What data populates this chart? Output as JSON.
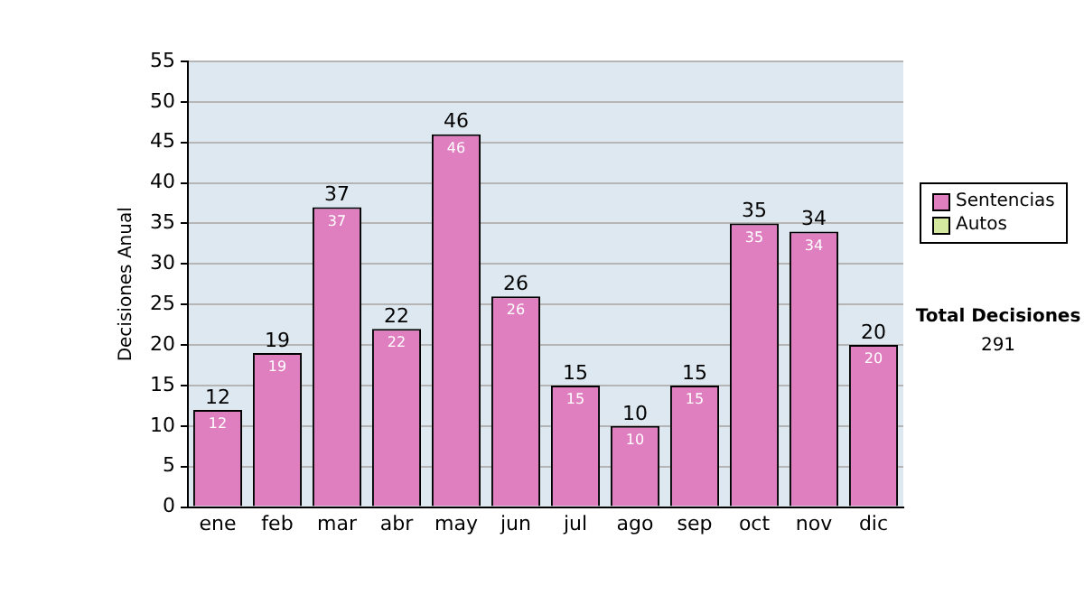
{
  "chart_data": {
    "type": "bar",
    "ylabel": "Decisiones Anual",
    "categories": [
      "ene",
      "feb",
      "mar",
      "abr",
      "may",
      "jun",
      "jul",
      "ago",
      "sep",
      "oct",
      "nov",
      "dic"
    ],
    "stacked": true,
    "series": [
      {
        "name": "Sentencias",
        "color": "#df7fc0",
        "values": [
          12,
          19,
          37,
          22,
          46,
          26,
          15,
          10,
          15,
          35,
          34,
          20
        ],
        "value_labels": [
          "12",
          "19",
          "37",
          "22",
          "46",
          "26",
          "15",
          "10",
          "15",
          "35",
          "34",
          "20"
        ]
      },
      {
        "name": "Autos",
        "color": "#d4e8a0",
        "values": [
          0,
          0,
          0,
          0,
          0,
          0,
          0,
          0,
          0,
          0,
          0,
          0
        ]
      }
    ],
    "totals": [
      "12",
      "19",
      "37",
      "22",
      "46",
      "26",
      "15",
      "10",
      "15",
      "35",
      "34",
      "20"
    ],
    "ylim": [
      0,
      55
    ],
    "yticks": [
      0,
      5,
      10,
      15,
      20,
      25,
      30,
      35,
      40,
      45,
      50,
      55
    ],
    "grid": "y",
    "legend": "right",
    "annotations": [
      "Total Decisiones",
      "291"
    ]
  }
}
